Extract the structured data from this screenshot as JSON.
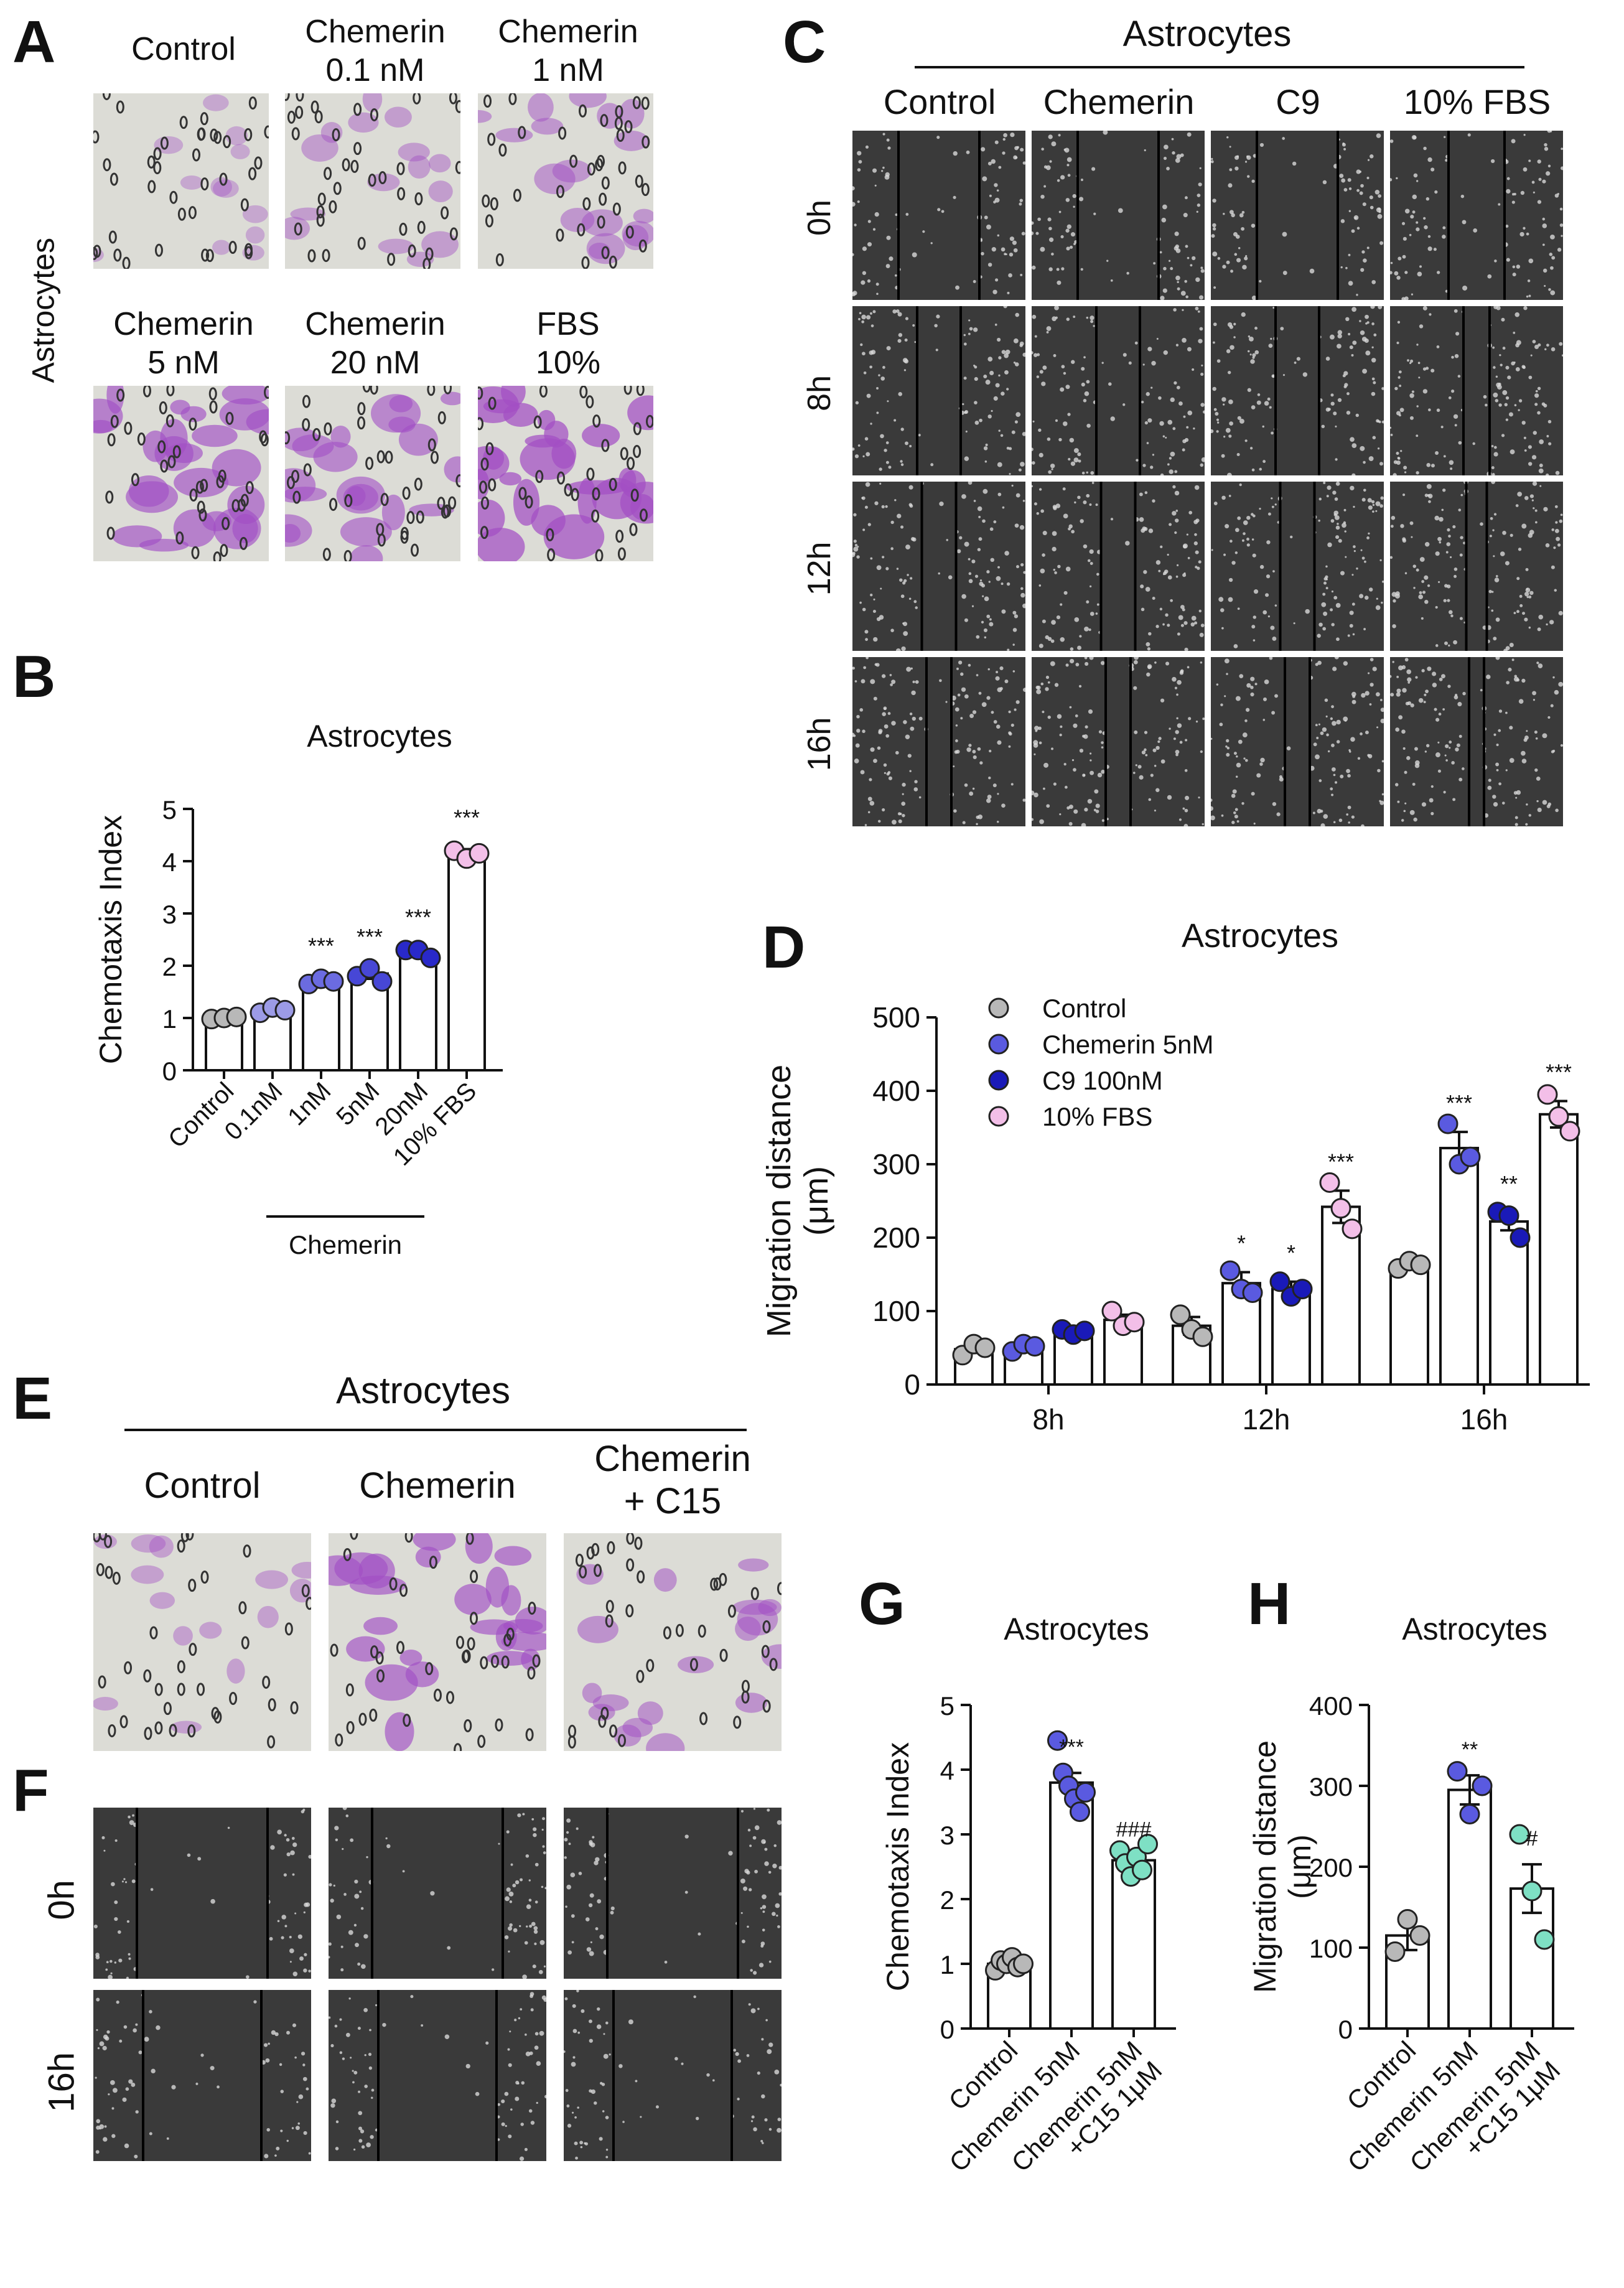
{
  "panels": {
    "A": {
      "letter": "A",
      "row_label": "Astrocytes",
      "images": [
        {
          "line1": "Control",
          "line2": "",
          "tint": 0.25
        },
        {
          "line1": "Chemerin",
          "line2": "0.1 nM",
          "tint": 0.4
        },
        {
          "line1": "Chemerin",
          "line2": "1 nM",
          "tint": 0.5
        },
        {
          "line1": "Chemerin",
          "line2": "5 nM",
          "tint": 0.8
        },
        {
          "line1": "Chemerin",
          "line2": "20 nM",
          "tint": 0.7
        },
        {
          "line1": "FBS",
          "line2": "10%",
          "tint": 0.95
        }
      ]
    },
    "B": {
      "letter": "B",
      "group_label": "Chemerin"
    },
    "C": {
      "letter": "C",
      "header": "Astrocytes",
      "columns": [
        "Control",
        "Chemerin",
        "C9",
        "10% FBS"
      ],
      "rows": [
        "0h",
        "8h",
        "12h",
        "16h"
      ]
    },
    "D": {
      "letter": "D"
    },
    "E": {
      "letter": "E",
      "header": "Astrocytes",
      "columns": [
        {
          "line1": "Control",
          "line2": "",
          "tint": 0.35
        },
        {
          "line1": "Chemerin",
          "line2": "",
          "tint": 0.8
        },
        {
          "line1": "Chemerin",
          "line2": "+ C15",
          "tint": 0.55
        }
      ]
    },
    "F": {
      "letter": "F",
      "rows": [
        "0h",
        "16h"
      ]
    },
    "G": {
      "letter": "G"
    },
    "H": {
      "letter": "H"
    }
  },
  "chart_data": [
    {
      "id": "B",
      "type": "bar",
      "title": "Astrocytes",
      "ylabel": "Chemotaxis Index",
      "ylim": [
        0,
        5
      ],
      "yticks": [
        0,
        1,
        2,
        3,
        4,
        5
      ],
      "categories": [
        "Control",
        "0.1nM",
        "1nM",
        "5nM",
        "20nM",
        "10% FBS"
      ],
      "values": [
        1.0,
        1.15,
        1.7,
        1.85,
        2.25,
        4.15
      ],
      "errors": [
        0.03,
        0.05,
        0.08,
        0.1,
        0.08,
        0.08
      ],
      "points": [
        [
          0.98,
          1.0,
          1.02
        ],
        [
          1.1,
          1.2,
          1.15
        ],
        [
          1.65,
          1.75,
          1.7
        ],
        [
          1.8,
          1.95,
          1.7
        ],
        [
          2.3,
          2.3,
          2.15
        ],
        [
          4.2,
          4.05,
          4.15
        ]
      ],
      "point_colors": [
        "#b8b8b8",
        "#9c9be6",
        "#6b6be0",
        "#4747d6",
        "#2929c9",
        "#f3bfe8"
      ],
      "annotations": [
        "",
        "",
        "***",
        "***",
        "***",
        "***"
      ]
    },
    {
      "id": "D",
      "type": "bar",
      "title": "Astrocytes",
      "ylabel": "Migration distance (μm)",
      "ylim": [
        0,
        500
      ],
      "yticks": [
        0,
        100,
        200,
        300,
        400,
        500
      ],
      "categories": [
        "8h",
        "12h",
        "16h"
      ],
      "legend_position": "top-left",
      "series": [
        {
          "name": "Control",
          "color": "#b8b8b8",
          "values": [
            48,
            80,
            163
          ],
          "errors": [
            5,
            12,
            6
          ],
          "points": [
            [
              40,
              55,
              50
            ],
            [
              95,
              75,
              65
            ],
            [
              158,
              168,
              163
            ]
          ],
          "annotations": [
            "",
            "",
            ""
          ]
        },
        {
          "name": "Chemerin 5nM",
          "color": "#5a5ae0",
          "values": [
            50,
            138,
            322
          ],
          "errors": [
            5,
            15,
            22
          ],
          "points": [
            [
              45,
              55,
              52
            ],
            [
              155,
              130,
              125
            ],
            [
              355,
              300,
              310
            ]
          ],
          "annotations": [
            "",
            "*",
            "***"
          ]
        },
        {
          "name": "C9 100nM",
          "color": "#1a1ab8",
          "values": [
            72,
            130,
            222
          ],
          "errors": [
            5,
            10,
            12
          ],
          "points": [
            [
              75,
              68,
              73
            ],
            [
              140,
              120,
              130
            ],
            [
              235,
              230,
              200
            ]
          ],
          "annotations": [
            "",
            "*",
            "**"
          ]
        },
        {
          "name": "10% FBS",
          "color": "#f3bfe8",
          "values": [
            88,
            242,
            368
          ],
          "errors": [
            7,
            22,
            18
          ],
          "points": [
            [
              100,
              80,
              85
            ],
            [
              275,
              240,
              212
            ],
            [
              395,
              365,
              345
            ]
          ],
          "annotations": [
            "",
            "***",
            "***"
          ]
        }
      ]
    },
    {
      "id": "G",
      "type": "bar",
      "title": "Astrocytes",
      "ylabel": "Chemotaxis Index",
      "ylim": [
        0,
        5
      ],
      "yticks": [
        0,
        1,
        2,
        3,
        4,
        5
      ],
      "categories": [
        "Control",
        "Chemerin 5nM",
        "Chemerin 5nM +C15 1μM"
      ],
      "values": [
        1.0,
        3.8,
        2.6
      ],
      "errors": [
        0.05,
        0.15,
        0.08
      ],
      "points": [
        [
          0.9,
          1.05,
          1.0,
          1.1,
          0.95,
          1.0
        ],
        [
          4.45,
          3.95,
          3.75,
          3.55,
          3.35,
          3.65
        ],
        [
          2.75,
          2.55,
          2.35,
          2.65,
          2.45,
          2.85
        ]
      ],
      "point_colors": [
        "#b8b8b8",
        "#5a5ae0",
        "#7ee0c4"
      ],
      "annotations": [
        "",
        "***",
        "###"
      ]
    },
    {
      "id": "H",
      "type": "bar",
      "title": "Astrocytes",
      "ylabel": "Migration distance (μm)",
      "ylim": [
        0,
        400
      ],
      "yticks": [
        0,
        100,
        200,
        300,
        400
      ],
      "categories": [
        "Control",
        "Chemerin 5nM",
        "Chemerin 5nM +C15 1μM"
      ],
      "values": [
        115,
        295,
        173
      ],
      "errors": [
        18,
        18,
        30
      ],
      "points": [
        [
          95,
          135,
          115
        ],
        [
          318,
          265,
          300
        ],
        [
          240,
          170,
          110
        ]
      ],
      "point_colors": [
        "#b8b8b8",
        "#5a5ae0",
        "#7ee0c4"
      ],
      "annotations": [
        "",
        "**",
        "#"
      ]
    }
  ]
}
